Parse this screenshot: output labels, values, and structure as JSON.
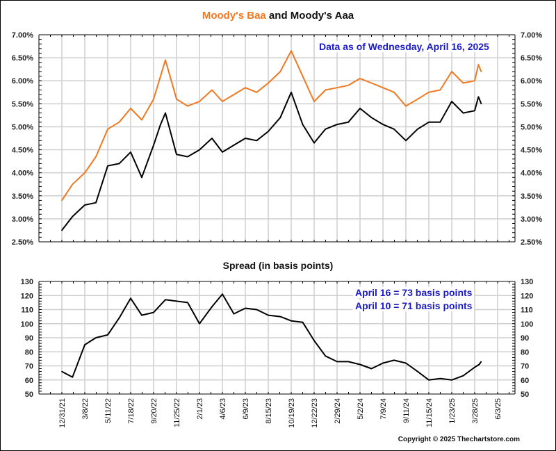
{
  "chart_data": [
    {
      "type": "line",
      "title_parts": [
        {
          "text": "Moody's Baa",
          "color": "#f07820"
        },
        {
          "text": " and Moody's Aaa",
          "color": "#111111"
        }
      ],
      "annotation": "Data as of Wednesday, April 16, 2025",
      "ylim": [
        2.5,
        7.0
      ],
      "yticks": [
        "7.00%",
        "6.50%",
        "6.00%",
        "5.50%",
        "5.00%",
        "4.50%",
        "4.00%",
        "3.50%",
        "3.00%",
        "2.50%"
      ],
      "ytick_values": [
        7.0,
        6.5,
        6.0,
        5.5,
        5.0,
        4.5,
        4.0,
        3.5,
        3.0,
        2.5
      ],
      "grid": true,
      "x_dates": [
        "12/31/21",
        "1/31/22",
        "3/8/22",
        "4/8/22",
        "5/11/22",
        "6/14/22",
        "7/18/22",
        "8/18/22",
        "9/20/22",
        "10/10/22",
        "10/24/22",
        "11/25/22",
        "12/28/22",
        "2/1/23",
        "3/8/23",
        "4/6/23",
        "5/8/23",
        "6/9/23",
        "7/12/23",
        "8/15/23",
        "9/18/23",
        "10/19/23",
        "11/20/23",
        "12/22/23",
        "1/25/24",
        "2/29/24",
        "3/31/24",
        "5/2/24",
        "6/5/24",
        "7/9/24",
        "8/9/24",
        "9/11/24",
        "10/14/24",
        "11/15/24",
        "12/19/24",
        "1/23/25",
        "2/24/25",
        "3/28/25",
        "4/8/25",
        "4/16/25"
      ],
      "series": [
        {
          "name": "Moody's Baa",
          "color": "#f07820",
          "values": [
            3.4,
            3.75,
            4.0,
            4.35,
            4.95,
            5.1,
            5.4,
            5.15,
            5.6,
            6.1,
            6.45,
            5.6,
            5.45,
            5.55,
            5.8,
            5.55,
            5.7,
            5.85,
            5.75,
            5.95,
            6.2,
            6.65,
            6.1,
            5.55,
            5.8,
            5.85,
            5.9,
            6.05,
            5.95,
            5.85,
            5.75,
            5.45,
            5.6,
            5.75,
            5.8,
            6.2,
            5.95,
            6.0,
            6.35,
            6.2
          ]
        },
        {
          "name": "Moody's Aaa",
          "color": "#000000",
          "values": [
            2.75,
            3.05,
            3.3,
            3.35,
            4.15,
            4.2,
            4.45,
            3.9,
            4.6,
            5.05,
            5.3,
            4.4,
            4.35,
            4.5,
            4.75,
            4.45,
            4.6,
            4.75,
            4.7,
            4.9,
            5.2,
            5.75,
            5.05,
            4.65,
            4.95,
            5.05,
            5.1,
            5.4,
            5.2,
            5.05,
            4.95,
            4.7,
            4.95,
            5.1,
            5.1,
            5.55,
            5.3,
            5.35,
            5.65,
            5.5
          ]
        }
      ]
    },
    {
      "type": "line",
      "title": "Spread (in basis points)",
      "annotations": [
        "April 16 = 73 basis points",
        "April 10 = 71 basis points"
      ],
      "ylim": [
        50,
        130
      ],
      "yticks": [
        "130",
        "120",
        "110",
        "100",
        "90",
        "80",
        "70",
        "60",
        "50"
      ],
      "ytick_values": [
        130,
        120,
        110,
        100,
        90,
        80,
        70,
        60,
        50
      ],
      "grid": true,
      "x_dates": [
        "12/31/21",
        "1/31/22",
        "3/8/22",
        "4/8/22",
        "5/11/22",
        "6/14/22",
        "7/18/22",
        "8/18/22",
        "9/20/22",
        "10/24/22",
        "11/25/22",
        "12/28/22",
        "2/1/23",
        "3/8/23",
        "4/6/23",
        "5/8/23",
        "6/9/23",
        "7/12/23",
        "8/15/23",
        "9/18/23",
        "10/19/23",
        "11/20/23",
        "12/22/23",
        "1/25/24",
        "2/29/24",
        "3/31/24",
        "5/2/24",
        "6/5/24",
        "7/9/24",
        "8/9/24",
        "9/11/24",
        "10/14/24",
        "11/15/24",
        "12/19/24",
        "1/23/25",
        "2/24/25",
        "3/28/25",
        "4/10/25",
        "4/16/25"
      ],
      "series": [
        {
          "name": "Spread",
          "color": "#000000",
          "values": [
            66,
            62,
            85,
            90,
            92,
            104,
            118,
            106,
            108,
            117,
            116,
            115,
            100,
            112,
            121,
            107,
            111,
            110,
            106,
            105,
            102,
            101,
            88,
            77,
            73,
            73,
            71,
            68,
            72,
            74,
            72,
            66,
            60,
            61,
            60,
            63,
            69,
            71,
            73
          ]
        }
      ]
    }
  ],
  "x_axis": {
    "tick_labels": [
      "12/31/21",
      "3/8/22",
      "5/11/22",
      "7/18/22",
      "9/20/22",
      "11/25/22",
      "2/1/23",
      "4/6/23",
      "6/9/23",
      "8/15/23",
      "10/19/23",
      "12/22/23",
      "2/29/24",
      "5/2/24",
      "7/9/24",
      "9/11/24",
      "11/15/24",
      "1/23/25",
      "3/28/25",
      "6/3/25"
    ]
  },
  "copyright": "Copyright © 2025 Thechartstore.com"
}
